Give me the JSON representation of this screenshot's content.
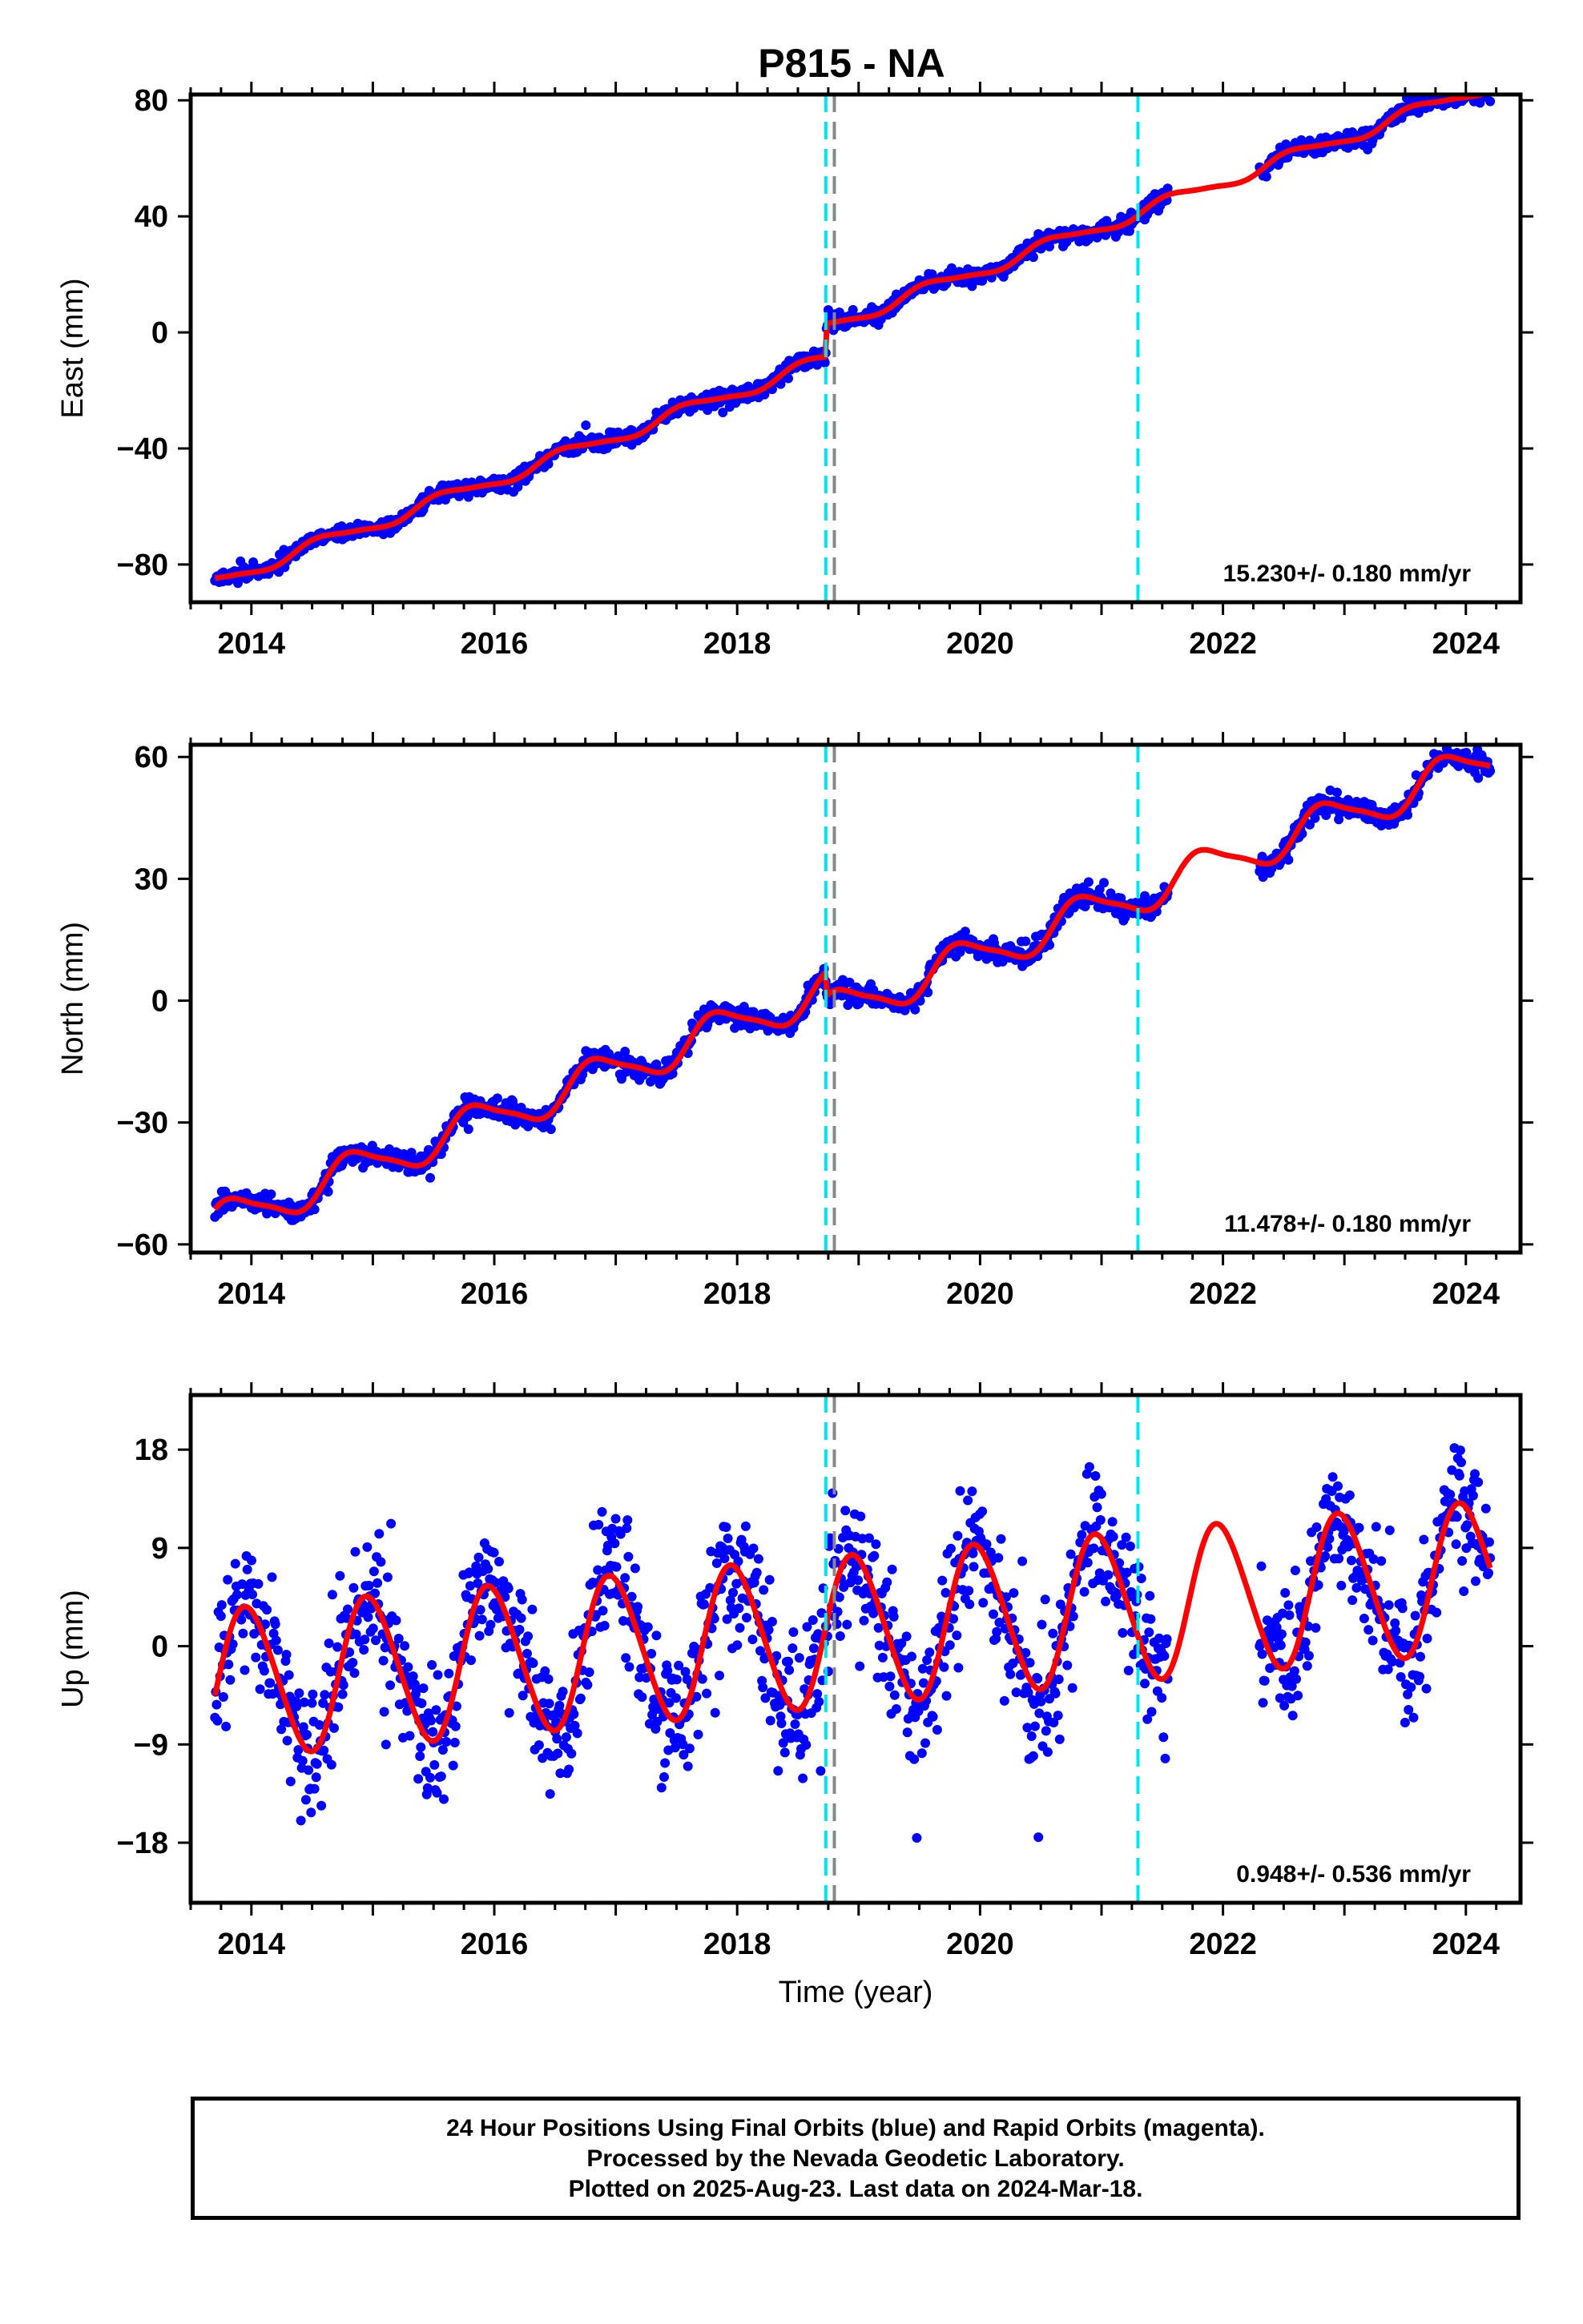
{
  "title": "P815 - NA",
  "chart_data": [
    {
      "type": "scatter",
      "panel": "east",
      "ylabel": "East (mm)",
      "ylim": [
        -93,
        82
      ],
      "yticks": [
        -80,
        -40,
        0,
        40,
        80
      ],
      "xlim": [
        2013.5,
        2024.45
      ],
      "xticks": [
        2014,
        2016,
        2018,
        2020,
        2022,
        2024
      ],
      "rate_label": "15.230+/- 0.180 mm/yr",
      "velocity_mm_per_yr": 15.23,
      "velocity_sigma": 0.18,
      "data_range": [
        2013.7,
        2024.2
      ],
      "gap": [
        2021.55,
        2022.3
      ],
      "series": [
        {
          "name": "",
          "kind": "points",
          "color": "#0000ff",
          "model": {
            "t0": 2013.7,
            "y0": -86,
            "rate": 15.23,
            "annual_amp": 2.2,
            "annual_phase": 0.35,
            "semi_amp": 0.5,
            "offsets": [
              {
                "t": 2018.73,
                "dy": 11.5
              }
            ],
            "noise": 1.4
          }
        },
        {
          "name": "",
          "kind": "fit",
          "color": "#ff0000",
          "model": {
            "t0": 2013.7,
            "y0": -86,
            "rate": 15.23,
            "annual_amp": 2.2,
            "annual_phase": 0.35,
            "semi_amp": 0.5,
            "offsets": [
              {
                "t": 2018.73,
                "dy": 11.5
              }
            ]
          }
        }
      ],
      "reference_lines": [
        2018.73,
        2018.8,
        2021.3
      ]
    },
    {
      "type": "scatter",
      "panel": "north",
      "ylabel": "North (mm)",
      "ylim": [
        -62,
        63
      ],
      "yticks": [
        -60,
        -30,
        0,
        30,
        60
      ],
      "xlim": [
        2013.5,
        2024.45
      ],
      "xticks": [
        2014,
        2016,
        2018,
        2020,
        2022,
        2024
      ],
      "rate_label": "11.478+/- 0.180 mm/yr",
      "velocity_mm_per_yr": 11.478,
      "velocity_sigma": 0.18,
      "data_range": [
        2013.7,
        2024.2
      ],
      "gap": [
        2021.55,
        2022.3
      ],
      "series": [
        {
          "name": "",
          "kind": "points",
          "color": "#0000ff",
          "model": {
            "t0": 2013.7,
            "y0": -55,
            "rate": 11.478,
            "annual_amp": 4.6,
            "annual_phase": 0.6,
            "semi_amp": 1.0,
            "offsets": [
              {
                "t": 2018.73,
                "dy": -6
              }
            ],
            "noise": 1.3
          }
        },
        {
          "name": "",
          "kind": "fit",
          "color": "#ff0000",
          "model": {
            "t0": 2013.7,
            "y0": -55,
            "rate": 11.478,
            "annual_amp": 4.6,
            "annual_phase": 0.6,
            "semi_amp": 1.0,
            "offsets": [
              {
                "t": 2018.73,
                "dy": -6
              }
            ]
          }
        }
      ],
      "reference_lines": [
        2018.73,
        2018.8,
        2021.3
      ]
    },
    {
      "type": "scatter",
      "panel": "up",
      "ylabel": "Up (mm)",
      "ylim": [
        -23.5,
        23
      ],
      "yticks": [
        -18,
        -9,
        0,
        9,
        18
      ],
      "xlim": [
        2013.5,
        2024.45
      ],
      "xticks": [
        2014,
        2016,
        2018,
        2020,
        2022,
        2024
      ],
      "xlabel": "Time (year)",
      "rate_label": "0.948+/- 0.536 mm/yr",
      "velocity_mm_per_yr": 0.948,
      "velocity_sigma": 0.536,
      "data_range": [
        2013.7,
        2024.2
      ],
      "gap": [
        2021.55,
        2022.3
      ],
      "series": [
        {
          "name": "",
          "kind": "points",
          "color": "#0000ff",
          "model": {
            "t0": 2013.7,
            "y0": -3.5,
            "rate": 0.948,
            "annual_amp": 6.8,
            "annual_phase": 0.72,
            "semi_amp": 0.6,
            "offsets": [],
            "noise": 2.9
          }
        },
        {
          "name": "",
          "kind": "fit",
          "color": "#ff0000",
          "model": {
            "t0": 2013.7,
            "y0": -3.5,
            "rate": 0.948,
            "annual_amp": 6.8,
            "annual_phase": 0.72,
            "semi_amp": 0.6,
            "offsets": []
          }
        }
      ],
      "reference_lines": [
        2018.73,
        2018.8,
        2021.3
      ]
    }
  ],
  "footer": {
    "line1": "24 Hour Positions Using Final Orbits (blue) and Rapid Orbits (magenta).",
    "line2": "Processed by the Nevada Geodetic Laboratory.",
    "line3": "Plotted on 2025-Aug-23. Last data on 2024-Mar-18."
  }
}
